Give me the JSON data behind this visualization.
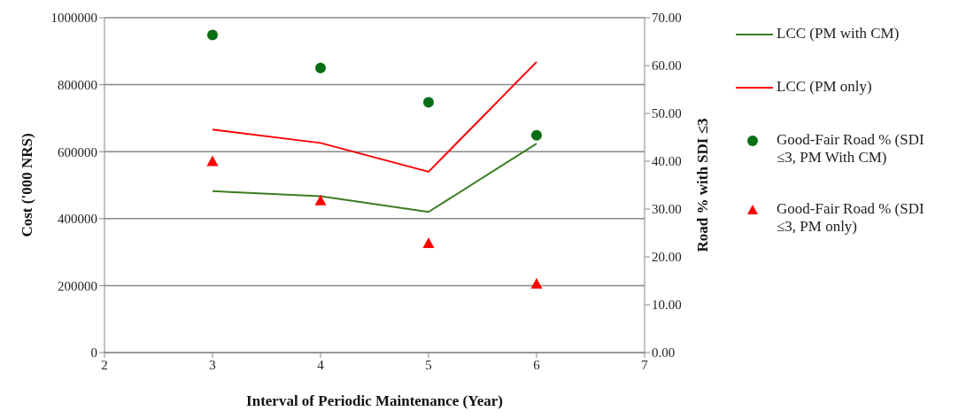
{
  "chart_data": {
    "type": "line",
    "xlabel": "Interval of Periodic Maintenance (Year)",
    "ylabel": "Cost ('000 NRS)",
    "y2label": "Road % with SDI ≤3",
    "x": [
      3,
      4,
      5,
      6
    ],
    "series": [
      {
        "name": "LCC (PM with CM)",
        "color": "#3a7d1f",
        "values": [
          482000,
          467000,
          420000,
          624000
        ],
        "marker": "none"
      },
      {
        "name": "LCC (PM only)",
        "color": "#ff0000",
        "values": [
          666000,
          626000,
          540000,
          868000
        ],
        "marker": "none"
      },
      {
        "type": "scatter",
        "name": "Good-Fair Road % (SDI ≤3, PM With CM)",
        "color": "#0a6e14",
        "values": [
          66.4,
          59.5,
          52.3,
          45.4
        ],
        "axis": "y2",
        "marker": "circle"
      },
      {
        "type": "scatter",
        "name": "Good-Fair Road % (SDI ≤3, PM only)",
        "color": "#ff0000",
        "values": [
          39.9,
          31.7,
          22.8,
          14.3
        ],
        "axis": "y2",
        "marker": "triangle"
      }
    ],
    "xlim": [
      2,
      7
    ],
    "xticks": [
      2,
      3,
      4,
      5,
      6,
      7
    ],
    "ylim": [
      0,
      1000000
    ],
    "yticks": [
      0,
      200000,
      400000,
      600000,
      800000,
      1000000
    ],
    "y2lim": [
      0,
      70
    ],
    "y2ticks": [
      {
        "value": 0,
        "label": "0.00"
      },
      {
        "value": 10,
        "label": "10.00"
      },
      {
        "value": 20,
        "label": "20.00"
      },
      {
        "value": 30,
        "label": "30.00"
      },
      {
        "value": 40,
        "label": "40.00"
      },
      {
        "value": 50,
        "label": "50.00"
      },
      {
        "value": 60,
        "label": "60.00"
      },
      {
        "value": 70,
        "label": "70.00"
      }
    ],
    "grid": "y",
    "legend": "right"
  }
}
